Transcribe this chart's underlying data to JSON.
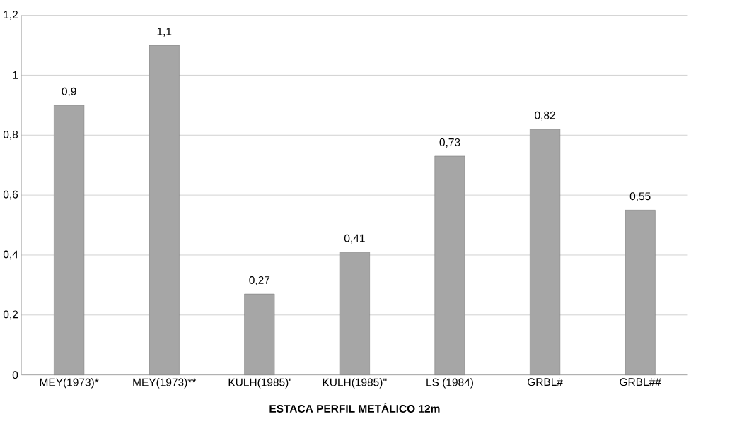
{
  "chart_data": {
    "type": "bar",
    "xlabel": "ESTACA PERFIL METÁLICO 12m",
    "categories": [
      "MEY(1973)*",
      "MEY(1973)**",
      "KULH(1985)'",
      "KULH(1985)''",
      "LS (1984)",
      "GRBL#",
      "GRBL##"
    ],
    "values": [
      0.9,
      1.1,
      0.27,
      0.41,
      0.73,
      0.82,
      0.55
    ],
    "value_labels": [
      "0,9",
      "1,1",
      "0,27",
      "0,41",
      "0,73",
      "0,82",
      "0,55"
    ],
    "color": "#a6a6a6",
    "ylim": [
      0,
      1.2
    ],
    "yticks": [
      0,
      {
        "value": 0.2,
        "label": "0,2"
      },
      {
        "value": 0.4,
        "label": "0,4"
      },
      {
        "value": 0.6,
        "label": "0,6"
      },
      {
        "value": 0.8,
        "label": "0,8"
      },
      1,
      {
        "value": 1.2,
        "label": "1,2"
      }
    ],
    "grid": "y"
  }
}
